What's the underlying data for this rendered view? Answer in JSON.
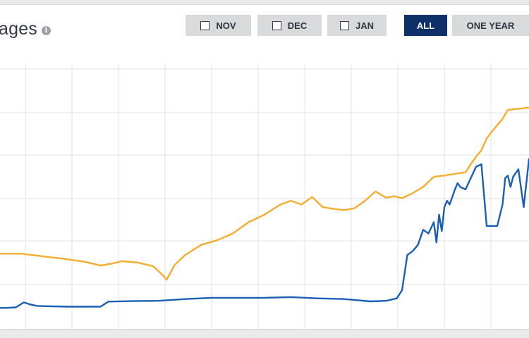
{
  "header": {
    "title": "ages"
  },
  "icons": {
    "info": "info-icon"
  },
  "buttons": [
    {
      "label": "NOV",
      "checkbox": true,
      "active": false
    },
    {
      "label": "DEC",
      "checkbox": true,
      "active": false
    },
    {
      "label": "JAN",
      "checkbox": true,
      "active": false
    },
    {
      "label": "ALL",
      "checkbox": false,
      "active": true
    },
    {
      "label": "ONE YEAR",
      "checkbox": false,
      "active": false
    }
  ],
  "colors": {
    "accent": "#0f2f69",
    "series_orange": "#f4ad2f",
    "series_blue": "#1a5fb4",
    "grid": "#e3e3e3"
  },
  "chart_data": {
    "type": "line",
    "grid": true,
    "xlim": [
      0,
      100
    ],
    "ylim": [
      0,
      100
    ],
    "series": [
      {
        "color": "#f4ad2f",
        "x": [
          0,
          4,
          8,
          12,
          16,
          19,
          21,
          23,
          26,
          29,
          31,
          31.5,
          33,
          35,
          38,
          41,
          44,
          47,
          50,
          53,
          55,
          57,
          59,
          61,
          63,
          65,
          67,
          69,
          71,
          73,
          74.5,
          76,
          78,
          80,
          82,
          84,
          86,
          88,
          89,
          90,
          91,
          92,
          93,
          94,
          95,
          96,
          97,
          98,
          99,
          100
        ],
        "y": [
          24.5,
          24.5,
          23.5,
          22.5,
          21.3,
          19.8,
          20.5,
          21.5,
          21,
          19.5,
          15.5,
          14.2,
          20,
          24,
          28,
          29.8,
          32.5,
          37,
          40,
          44,
          45.5,
          44,
          47,
          43,
          42.3,
          41.8,
          42.5,
          45.5,
          49.2,
          46.7,
          47.3,
          46.5,
          48.5,
          51,
          55,
          55.5,
          56.2,
          56.8,
          60,
          63,
          65.5,
          70.2,
          73,
          75.5,
          78,
          81.5,
          81.8,
          82,
          82.2,
          82.5
        ]
      },
      {
        "color": "#1a5fb4",
        "x": [
          0,
          1,
          3,
          4.5,
          5.5,
          7,
          10,
          13,
          16,
          19,
          20.5,
          25,
          30,
          35,
          40,
          45,
          50,
          55,
          60,
          65,
          70,
          73,
          75,
          76,
          77,
          78,
          79,
          80,
          81,
          82,
          82.5,
          83,
          83.5,
          84,
          84.5,
          85,
          86,
          86.5,
          87,
          88,
          89,
          90,
          91,
          92,
          93,
          94,
          95,
          95.5,
          96,
          96.5,
          97,
          98,
          99,
          100
        ],
        "y": [
          3,
          3,
          3.2,
          5.2,
          4.5,
          3.8,
          3.6,
          3.5,
          3.5,
          3.5,
          5.5,
          5.7,
          5.8,
          6.5,
          7,
          7,
          7,
          7.3,
          6.8,
          6.5,
          5.6,
          5.8,
          6.8,
          10,
          24,
          25.5,
          28,
          34,
          32.5,
          37,
          29,
          40,
          33.5,
          43,
          45.5,
          44,
          50,
          52.5,
          51,
          50,
          54.5,
          59,
          60,
          35.5,
          35.5,
          35.5,
          44,
          54.5,
          55.5,
          51,
          55,
          58,
          43,
          62
        ]
      }
    ]
  }
}
